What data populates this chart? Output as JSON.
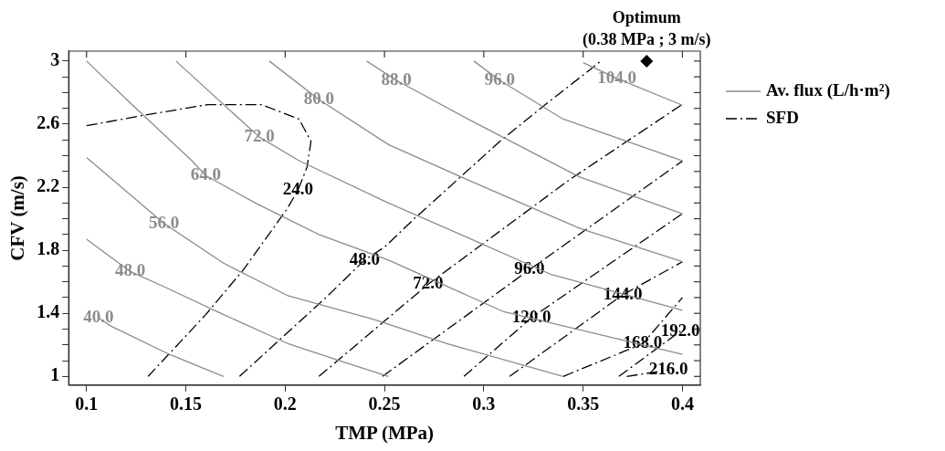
{
  "chart_data": {
    "type": "line",
    "xlabel": "TMP (MPa)",
    "ylabel": "CFV (m/s)",
    "xlim": [
      0.091,
      0.409
    ],
    "ylim": [
      0.945,
      3.063
    ],
    "xticks": [
      0.1,
      0.15,
      0.2,
      0.25,
      0.3,
      0.35,
      0.4
    ],
    "yticks": [
      1,
      {
        "value": 1.1,
        "label": null
      },
      {
        "value": 1.2,
        "label": null
      },
      {
        "value": 1.3,
        "label": null
      },
      1.4,
      {
        "value": 1.5,
        "label": null
      },
      {
        "value": 1.6,
        "label": null
      },
      {
        "value": 1.7,
        "label": null
      },
      1.8,
      {
        "value": 1.9,
        "label": null
      },
      {
        "value": 2.0,
        "label": null
      },
      {
        "value": 2.1,
        "label": null
      },
      2.2,
      {
        "value": 2.3,
        "label": null
      },
      {
        "value": 2.4,
        "label": null
      },
      {
        "value": 2.5,
        "label": null
      },
      2.6,
      {
        "value": 2.7,
        "label": null
      },
      {
        "value": 2.8,
        "label": null
      },
      {
        "value": 2.9,
        "label": null
      },
      3
    ],
    "legend": "right",
    "marker": "none",
    "series": [
      {
        "name": "Av. flux (L/h·m²)",
        "color": "#8c8c8c",
        "line_style": "solid",
        "x": [
          0.106,
          0.112,
          0.142,
          0.169
        ],
        "values": [
          1.372,
          1.321,
          1.138,
          1.0
        ]
      },
      {
        "color": "#8c8c8c",
        "line_style": "solid",
        "x": [
          0.1,
          0.122,
          0.138,
          0.169,
          0.201,
          0.225,
          0.252
        ],
        "values": [
          1.87,
          1.665,
          1.575,
          1.392,
          1.21,
          1.11,
          1.0
        ]
      },
      {
        "color": "#8c8c8c",
        "line_style": "solid",
        "x": [
          0.1,
          0.139,
          0.169,
          0.201,
          0.245,
          0.281,
          0.34
        ],
        "values": [
          2.388,
          1.97,
          1.718,
          1.514,
          1.36,
          1.209,
          1.0
        ]
      },
      {
        "color": "#8c8c8c",
        "line_style": "solid",
        "x": [
          0.1,
          0.122,
          0.153,
          0.16,
          0.185,
          0.217,
          0.252,
          0.31,
          0.4
        ],
        "values": [
          3.0,
          2.734,
          2.368,
          2.274,
          2.1,
          1.9,
          1.738,
          1.41,
          1.14
        ]
      },
      {
        "color": "#8c8c8c",
        "line_style": "solid",
        "x": [
          0.145,
          0.187,
          0.207,
          0.252,
          0.292,
          0.334,
          0.4
        ],
        "values": [
          3.0,
          2.518,
          2.368,
          2.1,
          1.88,
          1.646,
          1.42
        ]
      },
      {
        "color": "#8c8c8c",
        "line_style": "solid",
        "x": [
          0.192,
          0.217,
          0.252,
          0.292,
          0.348,
          0.4
        ],
        "values": [
          3.0,
          2.756,
          2.47,
          2.246,
          1.94,
          1.727
        ]
      },
      {
        "color": "#8c8c8c",
        "line_style": "solid",
        "x": [
          0.241,
          0.256,
          0.292,
          0.348,
          0.4
        ],
        "values": [
          3.0,
          2.878,
          2.632,
          2.266,
          2.032
        ]
      },
      {
        "color": "#8c8c8c",
        "line_style": "solid",
        "x": [
          0.295,
          0.308,
          0.34,
          0.4
        ],
        "values": [
          3.0,
          2.878,
          2.632,
          2.368
        ]
      },
      {
        "color": "#8c8c8c",
        "line_style": "solid",
        "x": [
          0.35,
          0.367,
          0.4
        ],
        "values": [
          2.99,
          2.89,
          2.72
        ]
      },
      {
        "name": "SFD",
        "color": "#000000",
        "line_style": "dashed",
        "x": [
          0.1,
          0.127,
          0.161,
          0.188,
          0.207,
          0.213,
          0.211,
          0.2065,
          0.201,
          0.179,
          0.16,
          0.131
        ],
        "values": [
          2.59,
          2.652,
          2.724,
          2.724,
          2.632,
          2.49,
          2.327,
          2.183,
          2.063,
          1.677,
          1.392,
          1.0
        ]
      },
      {
        "color": "#000000",
        "line_style": "dashed",
        "x": [
          0.177,
          0.22,
          0.24,
          0.25,
          0.265,
          0.308,
          0.332,
          0.359
        ],
        "values": [
          1.0,
          1.494,
          1.738,
          1.82,
          2.0,
          2.49,
          2.734,
          3.0
        ]
      },
      {
        "color": "#000000",
        "line_style": "dashed",
        "x": [
          0.217,
          0.272,
          0.343,
          0.4
        ],
        "values": [
          1.0,
          1.585,
          2.246,
          2.726
        ]
      },
      {
        "color": "#000000",
        "line_style": "dashed",
        "x": [
          0.249,
          0.323,
          0.4
        ],
        "values": [
          1.0,
          1.677,
          2.366
        ]
      },
      {
        "color": "#000000",
        "line_style": "dashed",
        "x": [
          0.29,
          0.324,
          0.4
        ],
        "values": [
          1.0,
          1.372,
          2.032
        ]
      },
      {
        "color": "#000000",
        "line_style": "dashed",
        "x": [
          0.313,
          0.37,
          0.4
        ],
        "values": [
          1.0,
          1.518,
          1.727
        ]
      },
      {
        "color": "#000000",
        "line_style": "dashed",
        "x": [
          0.34,
          0.38,
          0.4
        ],
        "values": [
          1.0,
          1.207,
          1.5
        ]
      },
      {
        "color": "#000000",
        "line_style": "dashed",
        "x": [
          0.368,
          0.399
        ],
        "values": [
          1.0,
          1.287
        ]
      },
      {
        "color": "#000000",
        "line_style": "dashed",
        "x": [
          0.372,
          0.393
        ],
        "values": [
          1.0,
          1.04
        ]
      },
      {
        "type": "scatter",
        "marker": "diamond",
        "color": "#000000",
        "x": [
          0.382
        ],
        "values": [
          3.0
        ]
      }
    ],
    "annotations": [
      {
        "text": "40.0",
        "x": 0.106,
        "y": 1.372
      },
      {
        "text": "48.0",
        "x": 0.122,
        "y": 1.665
      },
      {
        "text": "56.0",
        "x": 0.139,
        "y": 1.97
      },
      {
        "text": "64.0",
        "x": 0.16,
        "y": 2.274
      },
      {
        "text": "72.0",
        "x": 0.187,
        "y": 2.518
      },
      {
        "text": "80.0",
        "x": 0.217,
        "y": 2.756
      },
      {
        "text": "88.0",
        "x": 0.256,
        "y": 2.878
      },
      {
        "text": "96.0",
        "x": 0.308,
        "y": 2.878
      },
      {
        "text": "104.0",
        "x": 0.367,
        "y": 2.89
      },
      {
        "text": "24.0",
        "x": 0.2065,
        "y": 2.183
      },
      {
        "text": "48.0",
        "x": 0.24,
        "y": 1.738
      },
      {
        "text": "72.0",
        "x": 0.272,
        "y": 1.585
      },
      {
        "text": "96.0",
        "x": 0.323,
        "y": 1.677
      },
      {
        "text": "120.0",
        "x": 0.324,
        "y": 1.372
      },
      {
        "text": "144.0",
        "x": 0.37,
        "y": 1.518
      },
      {
        "text": "168.0",
        "x": 0.38,
        "y": 1.207
      },
      {
        "text": "192.0",
        "x": 0.399,
        "y": 1.287
      },
      {
        "text": "216.0",
        "x": 0.393,
        "y": 1.04
      },
      {
        "text": "Optimum",
        "x": 0.382,
        "y": 3.0
      },
      {
        "text": "(0.38 MPa ; 3 m/s)",
        "x": 0.382,
        "y": 3.0
      }
    ]
  }
}
